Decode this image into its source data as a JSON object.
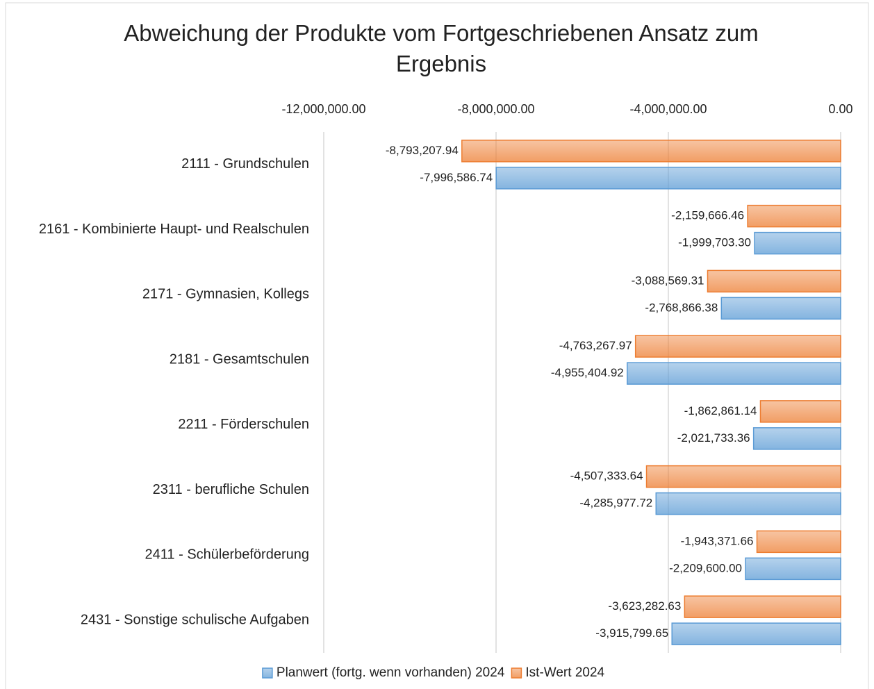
{
  "chart_data": {
    "type": "barh",
    "title": "Abweichung der Produkte vom Fortgeschriebenen Ansatz zum Ergebnis",
    "categories": [
      "2111 - Grundschulen",
      "2161 - Kombinierte Haupt- und Realschulen",
      "2171 - Gymnasien, Kollegs",
      "2181 - Gesamtschulen",
      "2211 - Förderschulen",
      "2311 - berufliche Schulen",
      "2411 - Schülerbeförderung",
      "2431 - Sonstige schulische Aufgaben"
    ],
    "series": [
      {
        "name": "Planwert (fortg. wenn vorhanden) 2024",
        "color": "#5b9bd5",
        "values": [
          -7996586.74,
          -1999703.3,
          -2768866.38,
          -4955404.92,
          -2021733.36,
          -4285977.72,
          -2209600.0,
          -3915799.65
        ],
        "value_labels": [
          "-7,996,586.74",
          "-1,999,703.30",
          "-2,768,866.38",
          "-4,955,404.92",
          "-2,021,733.36",
          "-4,285,977.72",
          "-2,209,600.00",
          "-3,915,799.65"
        ]
      },
      {
        "name": "Ist-Wert 2024",
        "color": "#ed7d31",
        "values": [
          -8793207.94,
          -2159666.46,
          -3088569.31,
          -4763267.97,
          -1862861.14,
          -4507333.64,
          -1943371.66,
          -3623282.63
        ],
        "value_labels": [
          "-8,793,207.94",
          "-2,159,666.46",
          "-3,088,569.31",
          "-4,763,267.97",
          "-1,862,861.14",
          "-4,507,333.64",
          "-1,943,371.66",
          "-3,623,282.63"
        ]
      }
    ],
    "xlim": [
      -12000000,
      0
    ],
    "xticks": [
      {
        "value": -12000000,
        "label": "-12,000,000.00"
      },
      {
        "value": -8000000,
        "label": "-8,000,000.00"
      },
      {
        "value": -4000000,
        "label": "-4,000,000.00"
      },
      {
        "value": 0,
        "label": "0.00"
      }
    ],
    "grid": true,
    "legend": "bottom"
  }
}
